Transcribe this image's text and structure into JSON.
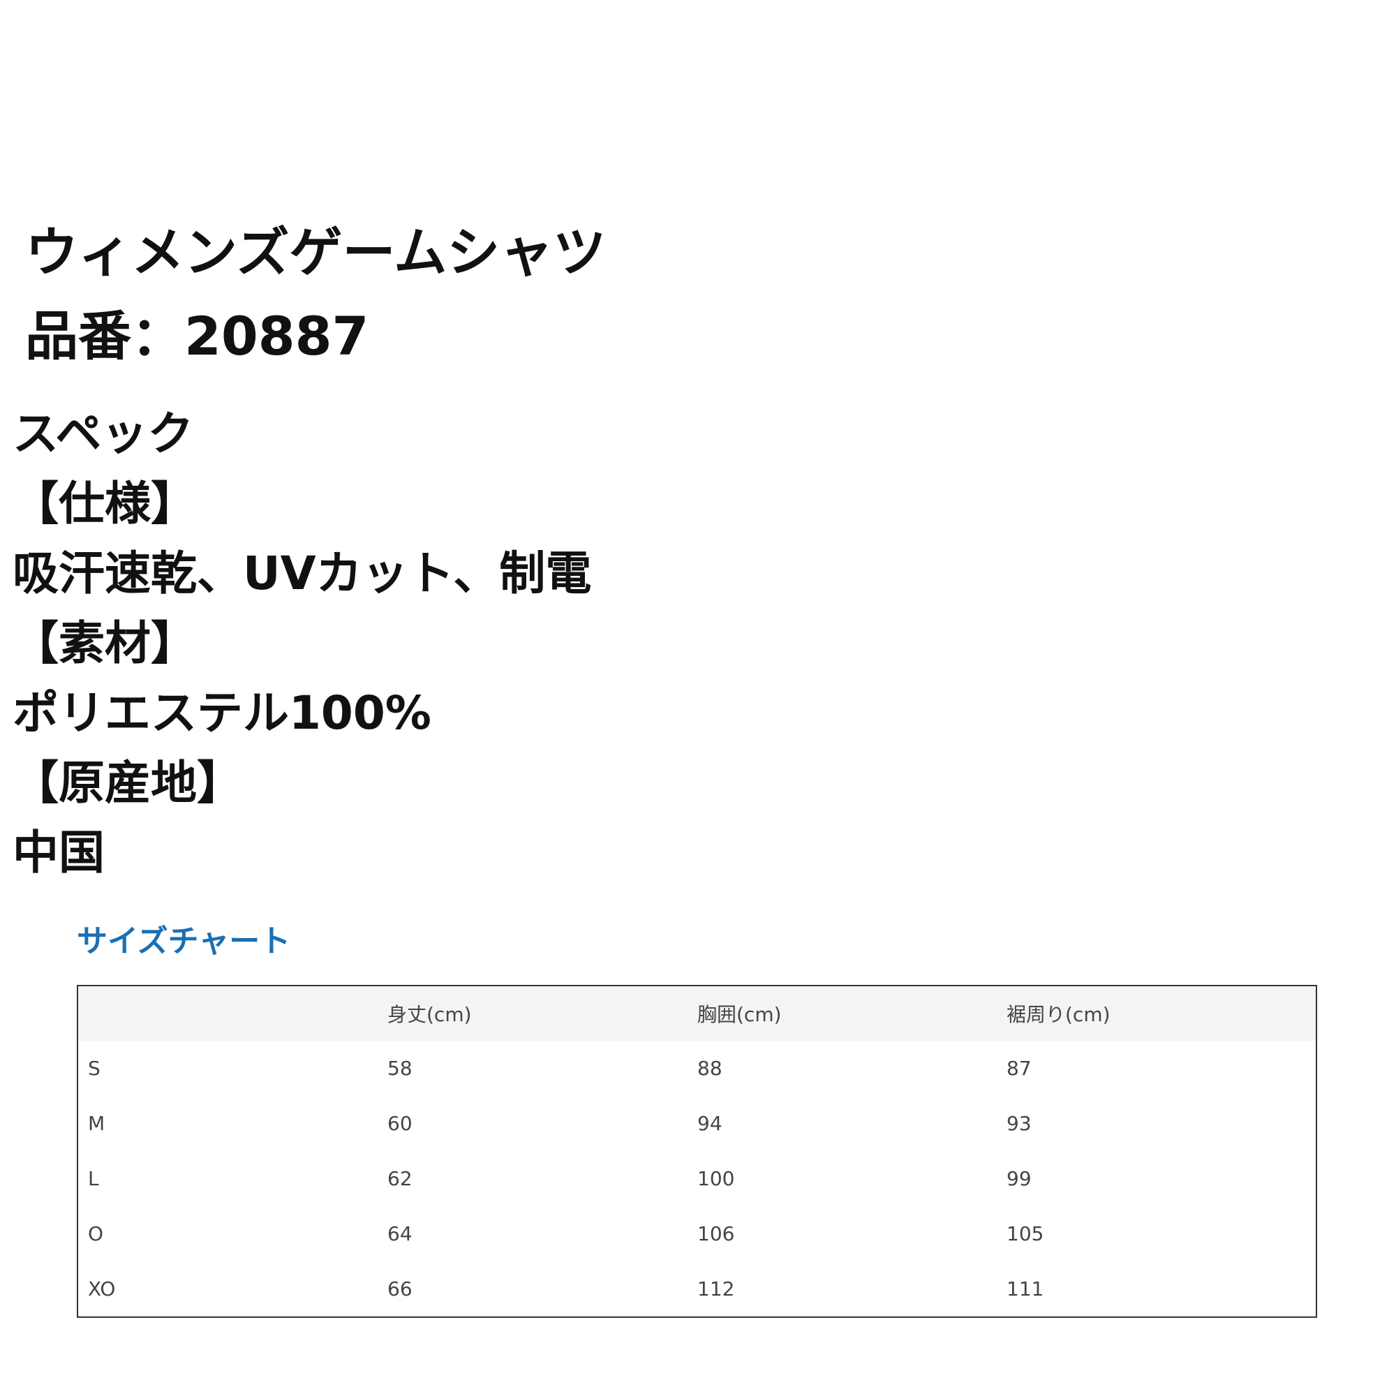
{
  "product": {
    "title": "ウィメンズゲームシャツ",
    "code_line": "品番：20887"
  },
  "spec": {
    "heading": "スペック",
    "lines": [
      "【仕様】",
      "吸汗速乾、UVカット、制電",
      "【素材】",
      "ポリエステル100%",
      "【原産地】",
      "中国"
    ]
  },
  "size_chart": {
    "title": "サイズチャート",
    "title_color": "#1a6fb5",
    "headers": [
      "",
      "身丈(cm)",
      "胸囲(cm)",
      "裾周り(cm)"
    ],
    "rows": [
      [
        "S",
        "58",
        "88",
        "87"
      ],
      [
        "M",
        "60",
        "94",
        "93"
      ],
      [
        "L",
        "62",
        "100",
        "99"
      ],
      [
        "O",
        "64",
        "106",
        "105"
      ],
      [
        "XO",
        "66",
        "112",
        "111"
      ]
    ]
  }
}
